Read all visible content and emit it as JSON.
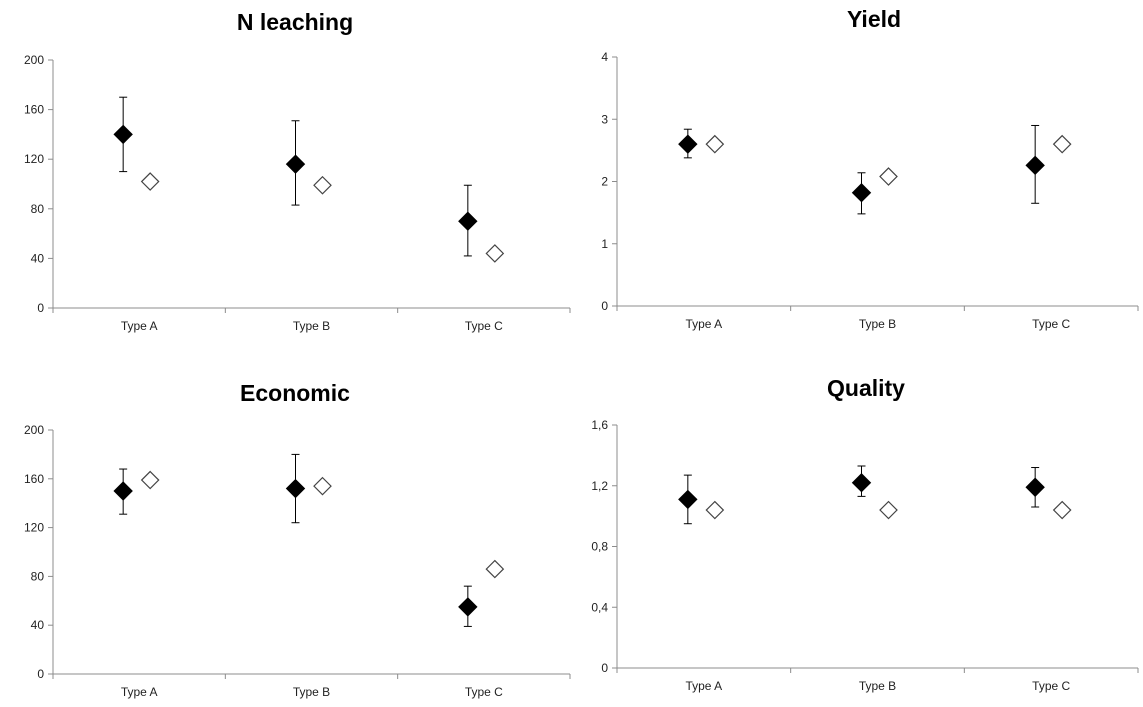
{
  "chart_data": [
    {
      "type": "scatter",
      "title": "N leaching",
      "categories": [
        "Type A",
        "Type B",
        "Type C"
      ],
      "ylim": [
        0,
        200
      ],
      "yticks": [
        "0",
        "40",
        "80",
        "120",
        "160",
        "200"
      ],
      "series": [
        {
          "marker": "filled-diamond",
          "values": [
            140,
            116,
            70
          ],
          "err_low": [
            110,
            83,
            42
          ],
          "err_high": [
            170,
            151,
            99
          ]
        },
        {
          "marker": "open-diamond",
          "values": [
            102,
            99,
            44
          ]
        }
      ]
    },
    {
      "type": "scatter",
      "title": "Yield",
      "categories": [
        "Type A",
        "Type B",
        "Type C"
      ],
      "ylim": [
        0,
        4
      ],
      "yticks": [
        "0",
        "1",
        "2",
        "3",
        "4"
      ],
      "series": [
        {
          "marker": "filled-diamond",
          "values": [
            2.6,
            1.82,
            2.26
          ],
          "err_low": [
            2.38,
            1.48,
            1.65
          ],
          "err_high": [
            2.84,
            2.14,
            2.9
          ]
        },
        {
          "marker": "open-diamond",
          "values": [
            2.6,
            2.08,
            2.6
          ]
        }
      ]
    },
    {
      "type": "scatter",
      "title": "Economic",
      "categories": [
        "Type A",
        "Type B",
        "Type C"
      ],
      "ylim": [
        0,
        200
      ],
      "yticks": [
        "0",
        "40",
        "80",
        "120",
        "160",
        "200"
      ],
      "series": [
        {
          "marker": "filled-diamond",
          "values": [
            150,
            152,
            55
          ],
          "err_low": [
            131,
            124,
            39
          ],
          "err_high": [
            168,
            180,
            72
          ]
        },
        {
          "marker": "open-diamond",
          "values": [
            159,
            154,
            86
          ]
        }
      ]
    },
    {
      "type": "scatter",
      "title": "Quality",
      "categories": [
        "Type A",
        "Type B",
        "Type C"
      ],
      "ylim": [
        0,
        1.6
      ],
      "yticks": [
        "0",
        "0,4",
        "0,8",
        "1,2",
        "1,6"
      ],
      "series": [
        {
          "marker": "filled-diamond",
          "values": [
            1.11,
            1.22,
            1.19
          ],
          "err_low": [
            0.95,
            1.13,
            1.06
          ],
          "err_high": [
            1.27,
            1.33,
            1.32
          ]
        },
        {
          "marker": "open-diamond",
          "values": [
            1.04,
            1.04,
            1.04
          ]
        }
      ]
    }
  ]
}
